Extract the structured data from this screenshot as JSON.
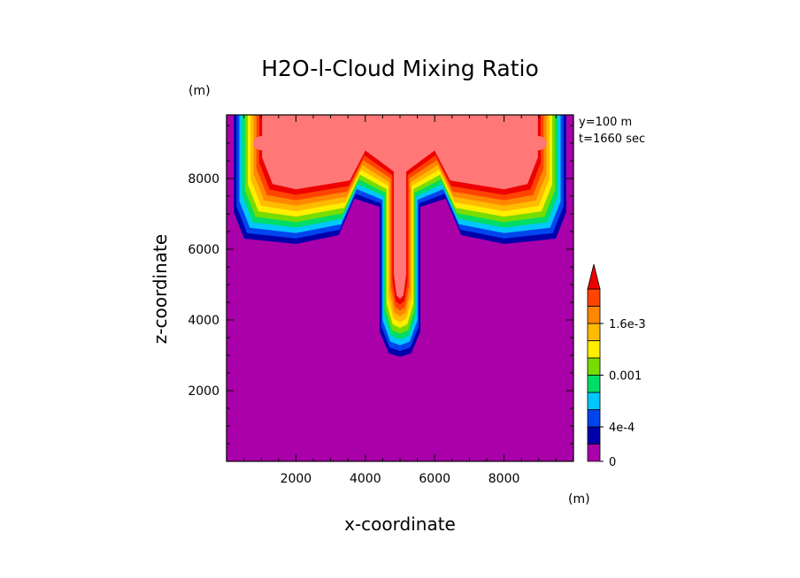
{
  "chart_data": {
    "type": "heatmap",
    "title": "H2O-l-Cloud Mixing Ratio",
    "xlabel": "x-coordinate",
    "ylabel": "z-coordinate",
    "x_unit": "(m)",
    "y_unit": "(m)",
    "annotations": [
      "y=100 m",
      "t=1660 sec"
    ],
    "xlim": [
      0,
      10000
    ],
    "ylim": [
      0,
      9800
    ],
    "xticks": [
      2000,
      4000,
      6000,
      8000
    ],
    "yticks": [
      2000,
      4000,
      6000,
      8000
    ],
    "colorbar": {
      "labels": [
        {
          "value": 0,
          "label": "0"
        },
        {
          "value": 0.0004,
          "label": "4e-4"
        },
        {
          "value": 0.001,
          "label": "0.001"
        },
        {
          "value": 0.0016,
          "label": "1.6e-3"
        }
      ],
      "levels": [
        0,
        0.0002,
        0.0004,
        0.0006,
        0.0008,
        0.001,
        0.0012,
        0.0014,
        0.0016,
        0.0018,
        0.002
      ],
      "colors": [
        "#aa00aa",
        "#0000aa",
        "#0044ee",
        "#00c8ff",
        "#00dd66",
        "#77dd00",
        "#ffee00",
        "#ffbb00",
        "#ff8800",
        "#ff4400",
        "#ee0000",
        "#ff7777"
      ],
      "extend": "max"
    },
    "grid": false,
    "description_fields": {
      "plume_center_x": 5000,
      "plume_bottom_z": 2800,
      "anvil_bottom_z": 6000
    }
  }
}
